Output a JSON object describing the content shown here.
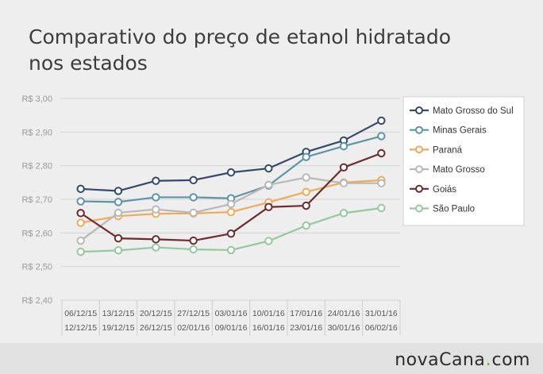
{
  "colors": {
    "background": "#eeeeee",
    "title": "#3d3d3d",
    "axis_label": "#9a9a9a",
    "grid": "#d4d4d4",
    "brand_accent": "#75b843"
  },
  "brand": {
    "part1": "novaCana",
    "dot": ".",
    "part2": "com"
  },
  "chart_data": {
    "type": "line",
    "title": "Comparativo do preço de etanol hidratado nos estados",
    "title_line1": "Comparativo do preço de etanol hidratado",
    "title_line2": "nos estados",
    "xlabel": "",
    "ylabel": "",
    "ylim": [
      2.4,
      3.0
    ],
    "yticks": [
      2.4,
      2.5,
      2.6,
      2.7,
      2.8,
      2.9,
      3.0
    ],
    "ytick_labels": [
      "R$ 2,40",
      "R$ 2,50",
      "R$ 2,60",
      "R$ 2,70",
      "R$ 2,80",
      "R$ 2,90",
      "R$ 3,00"
    ],
    "grid": true,
    "legend_position": "right",
    "categories": [
      {
        "start": "06/12/15",
        "end": "12/12/15"
      },
      {
        "start": "13/12/15",
        "end": "19/12/15"
      },
      {
        "start": "20/12/15",
        "end": "26/12/15"
      },
      {
        "start": "27/12/15",
        "end": "02/01/16"
      },
      {
        "start": "03/01/16",
        "end": "09/01/16"
      },
      {
        "start": "10/01/16",
        "end": "16/01/16"
      },
      {
        "start": "17/01/16",
        "end": "23/01/16"
      },
      {
        "start": "24/01/16",
        "end": "30/01/16"
      },
      {
        "start": "31/01/16",
        "end": "06/02/16"
      }
    ],
    "series": [
      {
        "name": "Mato Grosso do Sul",
        "color": "#344a6b",
        "values": [
          2.731,
          2.725,
          2.755,
          2.757,
          2.78,
          2.792,
          2.841,
          2.875,
          2.934
        ]
      },
      {
        "name": "Minas Gerais",
        "color": "#5d95a8",
        "values": [
          2.694,
          2.692,
          2.706,
          2.706,
          2.703,
          2.741,
          2.826,
          2.858,
          2.888
        ]
      },
      {
        "name": "Paraná",
        "color": "#eeac5b",
        "values": [
          2.63,
          2.65,
          2.657,
          2.658,
          2.662,
          2.691,
          2.722,
          2.75,
          2.757
        ]
      },
      {
        "name": "Mato Grosso",
        "color": "#b8b8b8",
        "values": [
          2.577,
          2.66,
          2.67,
          2.66,
          2.686,
          2.743,
          2.765,
          2.748,
          2.748
        ]
      },
      {
        "name": "Goiás",
        "color": "#6f2a2c",
        "values": [
          2.659,
          2.584,
          2.581,
          2.577,
          2.598,
          2.677,
          2.681,
          2.795,
          2.837
        ]
      },
      {
        "name": "São Paulo",
        "color": "#96c7a0",
        "values": [
          2.544,
          2.548,
          2.557,
          2.551,
          2.549,
          2.576,
          2.622,
          2.659,
          2.674
        ]
      }
    ]
  }
}
